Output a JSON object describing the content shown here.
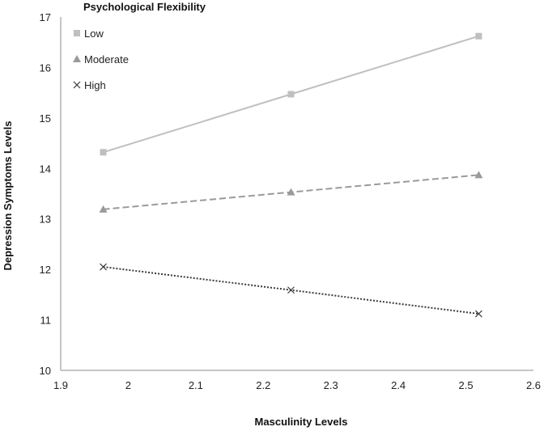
{
  "chart_data": {
    "type": "line",
    "xlabel": "Masculinity Levels",
    "ylabel": "Depression Symptoms Levels",
    "xlim": [
      1.9,
      2.6
    ],
    "ylim": [
      10,
      17
    ],
    "xticks": [
      "1.9",
      "2",
      "2.1",
      "2.2",
      "2.3",
      "2.4",
      "2.5",
      "2.6"
    ],
    "yticks": [
      "10",
      "11",
      "12",
      "13",
      "14",
      "15",
      "16",
      "17"
    ],
    "grid": false,
    "legend": {
      "title": "Psychological Flexibility",
      "placement": "top-left"
    },
    "x": [
      1.963,
      2.241,
      2.519
    ],
    "series": [
      {
        "name": "Low",
        "values": [
          14.32,
          15.47,
          16.62
        ],
        "color": "#bfbfbf",
        "dash": "solid",
        "marker": "square"
      },
      {
        "name": "Moderate",
        "values": [
          13.19,
          13.53,
          13.87
        ],
        "color": "#9a9a9a",
        "dash": "dashed",
        "marker": "triangle"
      },
      {
        "name": "High",
        "values": [
          12.05,
          11.59,
          11.12
        ],
        "color": "#3a3a3a",
        "dash": "dotted",
        "marker": "x"
      }
    ]
  }
}
